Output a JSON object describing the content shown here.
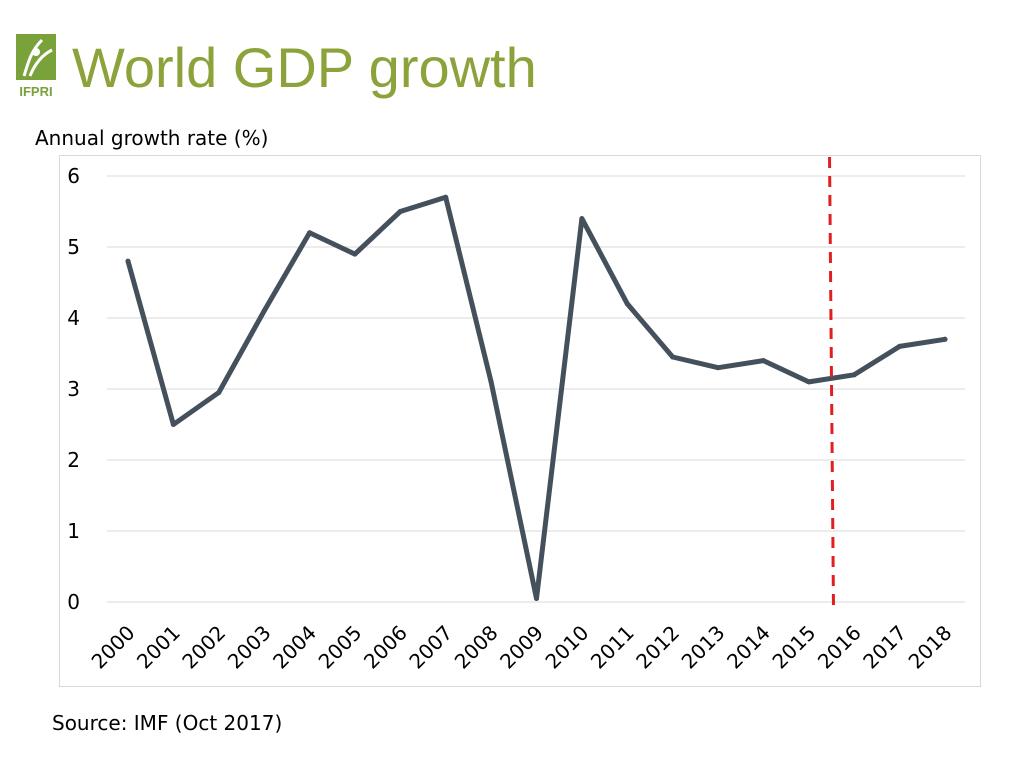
{
  "header": {
    "title": "World GDP growth",
    "logo_text": "IFPRI"
  },
  "colors": {
    "title": "#8ca33c",
    "logo_green": "#7aa23a",
    "series": "#44505c",
    "marker": "#e02020",
    "grid": "#d9d9d9"
  },
  "footer": {
    "source": "Source: IMF (Oct 2017)"
  },
  "chart_data": {
    "type": "line",
    "title": "World GDP growth",
    "ylabel": "Annual growth rate (%)",
    "xlabel": "",
    "ylim": [
      0,
      6
    ],
    "yticks": [
      0,
      1,
      2,
      3,
      4,
      5,
      6
    ],
    "grid": true,
    "legend": "none",
    "x": [
      "2000",
      "2001",
      "2002",
      "2003",
      "2004",
      "2005",
      "2006",
      "2007",
      "2008",
      "2009",
      "2010",
      "2011",
      "2012",
      "2013",
      "2014",
      "2015",
      "2016",
      "2017",
      "2018"
    ],
    "series": [
      {
        "name": "World GDP growth",
        "values": [
          4.8,
          2.5,
          2.95,
          4.1,
          5.2,
          4.9,
          5.5,
          5.7,
          3.1,
          0.05,
          5.4,
          4.2,
          3.45,
          3.3,
          3.4,
          3.1,
          3.2,
          3.6,
          3.7
        ]
      }
    ],
    "annotations": [
      {
        "type": "vertical-dashed-line",
        "x": "2015.5"
      }
    ]
  }
}
